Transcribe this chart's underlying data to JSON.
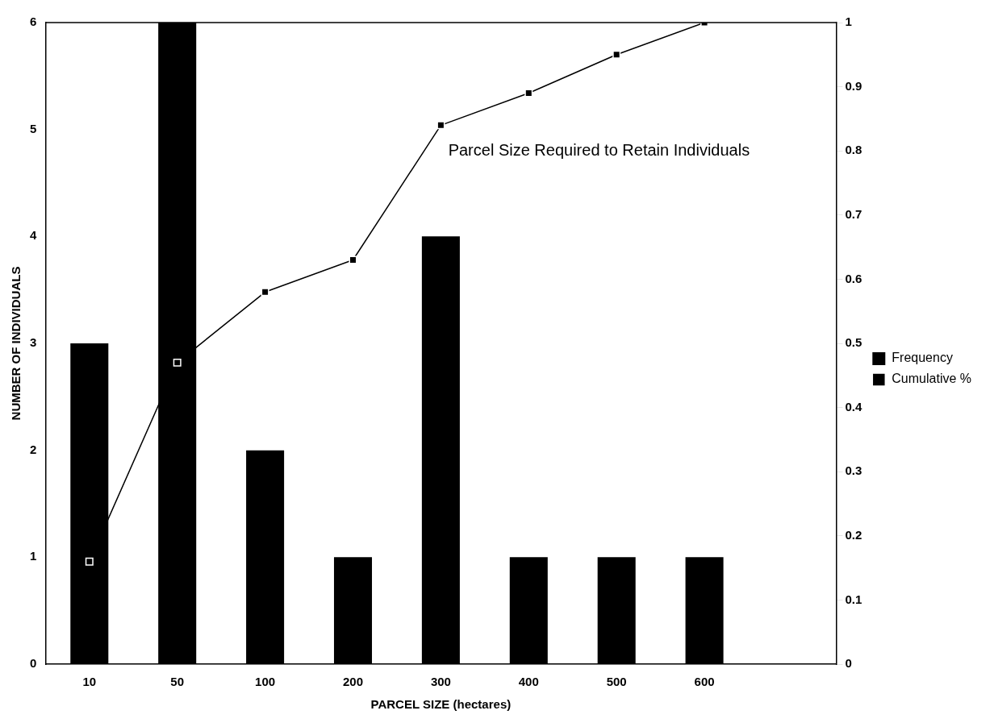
{
  "chart_data": {
    "type": "bar",
    "xlabel": "PARCEL SIZE (hectares)",
    "ylabel": "NUMBER OF INDIVIDUALS",
    "categories": [
      "10",
      "50",
      "100",
      "200",
      "300",
      "400",
      "500",
      "600",
      null
    ],
    "series": [
      {
        "name": "Frequency",
        "color": "#000000",
        "values": [
          3,
          6,
          2,
          1,
          4,
          1,
          1,
          1,
          null
        ]
      },
      {
        "name": "Cumulative %",
        "type": "line",
        "axis": "y2",
        "color": "#000000",
        "marker": "square",
        "values": [
          0.16,
          0.47,
          0.58,
          0.63,
          0.84,
          0.89,
          0.95,
          1.0,
          null
        ]
      }
    ],
    "ylim": [
      0,
      6
    ],
    "yticks": [
      0,
      1,
      2,
      3,
      4,
      5,
      6
    ],
    "y2lim": [
      0,
      1
    ],
    "y2ticks": [
      0,
      0.1,
      0.2,
      0.3,
      0.4,
      0.5,
      0.6,
      0.7,
      0.8,
      0.9,
      1
    ],
    "annotations": [
      "Parcel Size Required to Retain Individuals"
    ],
    "grid": false,
    "legend": "right"
  }
}
